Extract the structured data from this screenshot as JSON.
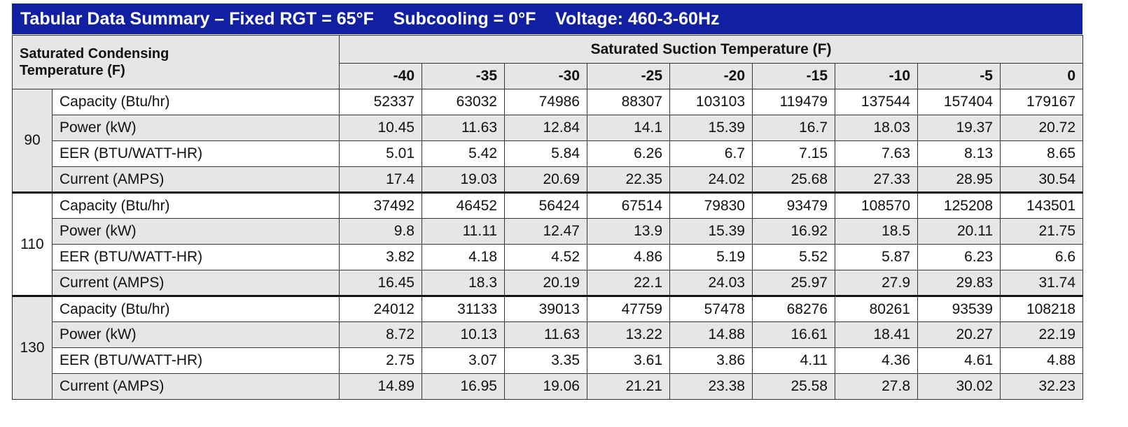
{
  "title": "Tabular Data Summary – Fixed RGT = 65°F    Subcooling = 0°F    Voltage: 460-3-60Hz",
  "header": {
    "corner": "Saturated Condensing Temperature (F)",
    "group": "Saturated Suction Temperature (F)",
    "columns": [
      -40,
      -35,
      -30,
      -25,
      -20,
      -15,
      -10,
      -5,
      0
    ]
  },
  "groups": [
    {
      "label": "90",
      "rows": [
        {
          "label": "Capacity (Btu/hr)",
          "values": [
            52337,
            63032,
            74986,
            88307,
            103103,
            119479,
            137544,
            157404,
            179167
          ]
        },
        {
          "label": "Power (kW)",
          "values": [
            10.45,
            11.63,
            12.84,
            14.1,
            15.39,
            16.7,
            18.03,
            19.37,
            20.72
          ]
        },
        {
          "label": "EER (BTU/WATT-HR)",
          "values": [
            5.01,
            5.42,
            5.84,
            6.26,
            6.7,
            7.15,
            7.63,
            8.13,
            8.65
          ]
        },
        {
          "label": "Current (AMPS)",
          "values": [
            17.4,
            19.03,
            20.69,
            22.35,
            24.02,
            25.68,
            27.33,
            28.95,
            30.54
          ]
        }
      ]
    },
    {
      "label": "110",
      "rows": [
        {
          "label": "Capacity (Btu/hr)",
          "values": [
            37492,
            46452,
            56424,
            67514,
            79830,
            93479,
            108570,
            125208,
            143501
          ]
        },
        {
          "label": "Power (kW)",
          "values": [
            9.8,
            11.11,
            12.47,
            13.9,
            15.39,
            16.92,
            18.5,
            20.11,
            21.75
          ]
        },
        {
          "label": "EER (BTU/WATT-HR)",
          "values": [
            3.82,
            4.18,
            4.52,
            4.86,
            5.19,
            5.52,
            5.87,
            6.23,
            6.6
          ]
        },
        {
          "label": "Current (AMPS)",
          "values": [
            16.45,
            18.3,
            20.19,
            22.1,
            24.03,
            25.97,
            27.9,
            29.83,
            31.74
          ]
        }
      ]
    },
    {
      "label": "130",
      "rows": [
        {
          "label": "Capacity (Btu/hr)",
          "values": [
            24012,
            31133,
            39013,
            47759,
            57478,
            68276,
            80261,
            93539,
            108218
          ]
        },
        {
          "label": "Power (kW)",
          "values": [
            8.72,
            10.13,
            11.63,
            13.22,
            14.88,
            16.61,
            18.41,
            20.27,
            22.19
          ]
        },
        {
          "label": "EER (BTU/WATT-HR)",
          "values": [
            2.75,
            3.07,
            3.35,
            3.61,
            3.86,
            4.11,
            4.36,
            4.61,
            4.88
          ]
        },
        {
          "label": "Current (AMPS)",
          "values": [
            14.89,
            16.95,
            19.06,
            21.21,
            23.38,
            25.58,
            27.8,
            30.02,
            32.23
          ]
        }
      ]
    }
  ]
}
